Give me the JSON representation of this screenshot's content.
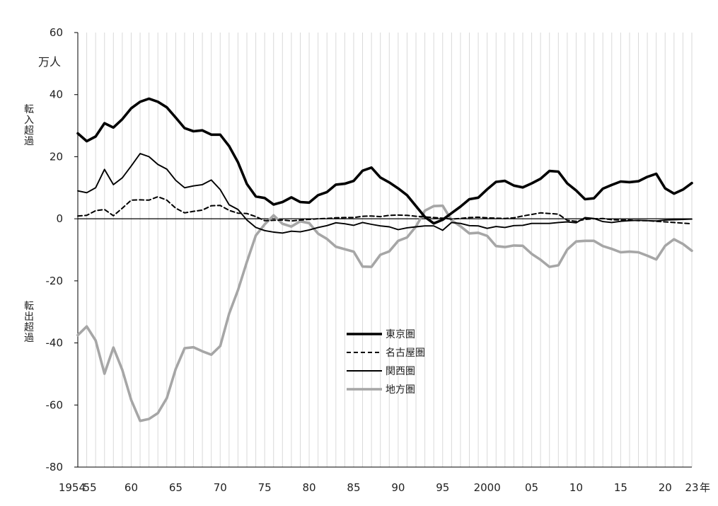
{
  "chart_data": {
    "type": "line",
    "unit_label": "万人",
    "annotation_in": "転入超過",
    "annotation_out": "転出超過",
    "x_suffix": "年",
    "ylim": [
      -80,
      60
    ],
    "yticks": [
      60,
      40,
      20,
      0,
      -20,
      -40,
      -60,
      -80
    ],
    "xlim": [
      1954,
      2023
    ],
    "xtick_labels": [
      {
        "x": 1954,
        "label": "1954"
      },
      {
        "x": 1955,
        "label": "55"
      },
      {
        "x": 1960,
        "label": "60"
      },
      {
        "x": 1965,
        "label": "65"
      },
      {
        "x": 1970,
        "label": "70"
      },
      {
        "x": 1975,
        "label": "75"
      },
      {
        "x": 1980,
        "label": "80"
      },
      {
        "x": 1985,
        "label": "85"
      },
      {
        "x": 1990,
        "label": "90"
      },
      {
        "x": 1995,
        "label": "95"
      },
      {
        "x": 2000,
        "label": "2000"
      },
      {
        "x": 2005,
        "label": "05"
      },
      {
        "x": 2010,
        "label": "10"
      },
      {
        "x": 2015,
        "label": "15"
      },
      {
        "x": 2020,
        "label": "20"
      },
      {
        "x": 2023,
        "label": "23"
      }
    ],
    "grid": "vertical",
    "legend_position": "center",
    "series": [
      {
        "name": "東京圏",
        "color": "#000000",
        "style": "thick",
        "x": [
          1954,
          1955,
          1956,
          1957,
          1958,
          1959,
          1960,
          1961,
          1962,
          1963,
          1964,
          1965,
          1966,
          1967,
          1968,
          1969,
          1970,
          1971,
          1972,
          1973,
          1974,
          1975,
          1976,
          1977,
          1978,
          1979,
          1980,
          1981,
          1982,
          1983,
          1984,
          1985,
          1986,
          1987,
          1988,
          1989,
          1990,
          1991,
          1992,
          1993,
          1994,
          1995,
          1996,
          1997,
          1998,
          1999,
          2000,
          2001,
          2002,
          2003,
          2004,
          2005,
          2006,
          2007,
          2008,
          2009,
          2010,
          2011,
          2012,
          2013,
          2014,
          2015,
          2016,
          2017,
          2018,
          2019,
          2020,
          2021,
          2022,
          2023
        ],
        "values": [
          27.5,
          25,
          26.5,
          30.8,
          29.4,
          32.1,
          35.6,
          37.7,
          38.7,
          37.7,
          35.9,
          32.6,
          29.2,
          28.2,
          28.5,
          27.1,
          27.1,
          23.4,
          18.2,
          11.2,
          7.2,
          6.7,
          4.6,
          5.4,
          6.9,
          5.4,
          5.2,
          7.6,
          8.6,
          11,
          11.3,
          12.2,
          15.5,
          16.5,
          13.3,
          11.7,
          9.8,
          7.6,
          4.1,
          0.6,
          -1.5,
          -0.3,
          1.8,
          3.9,
          6.3,
          6.8,
          9.5,
          11.9,
          12.2,
          10.7,
          10.1,
          11.4,
          12.9,
          15.4,
          15.2,
          11.4,
          9.1,
          6.3,
          6.6,
          9.7,
          10.9,
          12,
          11.8,
          12.1,
          13.5,
          14.5,
          9.8,
          8.1,
          9.4,
          11.5
        ]
      },
      {
        "name": "名古屋圏",
        "color": "#000000",
        "style": "dashed",
        "x": [
          1954,
          1955,
          1956,
          1957,
          1958,
          1959,
          1960,
          1961,
          1962,
          1963,
          1964,
          1965,
          1966,
          1967,
          1968,
          1969,
          1970,
          1971,
          1972,
          1973,
          1974,
          1975,
          1976,
          1977,
          1978,
          1979,
          1980,
          1981,
          1982,
          1983,
          1984,
          1985,
          1986,
          1987,
          1988,
          1989,
          1990,
          1991,
          1992,
          1993,
          1994,
          1995,
          1996,
          1997,
          1998,
          1999,
          2000,
          2001,
          2002,
          2003,
          2004,
          2005,
          2006,
          2007,
          2008,
          2009,
          2010,
          2011,
          2012,
          2013,
          2014,
          2015,
          2016,
          2017,
          2018,
          2019,
          2020,
          2021,
          2022,
          2023
        ],
        "values": [
          0.9,
          1.1,
          2.6,
          3,
          1,
          3.4,
          6,
          6.1,
          6,
          7.1,
          6,
          3.4,
          1.9,
          2.4,
          2.8,
          4.2,
          4.3,
          2.7,
          1.8,
          1.7,
          0.7,
          -0.6,
          -0.5,
          -0.4,
          -0.7,
          -0.4,
          -0.2,
          0,
          0.1,
          0.3,
          0.4,
          0.4,
          0.8,
          0.9,
          0.7,
          1.1,
          1.2,
          1.1,
          0.8,
          0.6,
          0.4,
          0.2,
          -0.1,
          0.1,
          0.4,
          0.5,
          0.3,
          0.2,
          0.1,
          0.3,
          0.9,
          1.4,
          1.9,
          1.7,
          1.5,
          -0.5,
          -0.8,
          -0.2,
          0,
          0.1,
          -0.3,
          -0.4,
          -0.4,
          -0.6,
          -0.6,
          -0.8,
          -1,
          -1.2,
          -1.4,
          -1.6
        ]
      },
      {
        "name": "関西圏",
        "color": "#000000",
        "style": "thin",
        "x": [
          1954,
          1955,
          1956,
          1957,
          1958,
          1959,
          1960,
          1961,
          1962,
          1963,
          1964,
          1965,
          1966,
          1967,
          1968,
          1969,
          1970,
          1971,
          1972,
          1973,
          1974,
          1975,
          1976,
          1977,
          1978,
          1979,
          1980,
          1981,
          1982,
          1983,
          1984,
          1985,
          1986,
          1987,
          1988,
          1989,
          1990,
          1991,
          1992,
          1993,
          1994,
          1995,
          1996,
          1997,
          1998,
          1999,
          2000,
          2001,
          2002,
          2003,
          2004,
          2005,
          2006,
          2007,
          2008,
          2009,
          2010,
          2011,
          2012,
          2013,
          2014,
          2015,
          2016,
          2017,
          2018,
          2019,
          2020,
          2021,
          2022,
          2023
        ],
        "values": [
          9,
          8.4,
          10,
          15.9,
          11,
          13.2,
          17,
          21,
          20,
          17.5,
          16,
          12.4,
          10,
          10.6,
          11,
          12.5,
          9.4,
          4.5,
          3,
          -0.4,
          -2.8,
          -3.8,
          -4.3,
          -4.6,
          -4,
          -4.2,
          -3.6,
          -2.8,
          -2.2,
          -1.3,
          -1.6,
          -2.1,
          -1.2,
          -1.8,
          -2.3,
          -2.6,
          -3.5,
          -2.9,
          -2.6,
          -2.3,
          -2.3,
          -3.7,
          -1.2,
          -1.5,
          -2.2,
          -2.3,
          -3.1,
          -2.5,
          -2.8,
          -2.2,
          -2.1,
          -1.5,
          -1.5,
          -1.5,
          -1.2,
          -1,
          -1.3,
          0.4,
          0.1,
          -0.9,
          -1.2,
          -0.8,
          -0.6,
          -0.5,
          -0.6,
          -0.7,
          -0.4,
          -0.3,
          -0.2,
          -0.1
        ]
      },
      {
        "name": "地方圏",
        "color": "#a6a6a6",
        "style": "thick",
        "x": [
          1954,
          1955,
          1956,
          1957,
          1958,
          1959,
          1960,
          1961,
          1962,
          1963,
          1964,
          1965,
          1966,
          1967,
          1968,
          1969,
          1970,
          1971,
          1972,
          1973,
          1974,
          1975,
          1976,
          1977,
          1978,
          1979,
          1980,
          1981,
          1982,
          1983,
          1984,
          1985,
          1986,
          1987,
          1988,
          1989,
          1990,
          1991,
          1992,
          1993,
          1994,
          1995,
          1996,
          1997,
          1998,
          1999,
          2000,
          2001,
          2002,
          2003,
          2004,
          2005,
          2006,
          2007,
          2008,
          2009,
          2010,
          2011,
          2012,
          2013,
          2014,
          2015,
          2016,
          2017,
          2018,
          2019,
          2020,
          2021,
          2022,
          2023
        ],
        "values": [
          -37.5,
          -34.7,
          -39.2,
          -49.9,
          -41.5,
          -48.7,
          -58.4,
          -65.1,
          -64.5,
          -62.6,
          -57.8,
          -48.4,
          -41.7,
          -41.4,
          -42.7,
          -43.8,
          -41,
          -30.6,
          -23,
          -13.9,
          -5.4,
          -1.8,
          1.1,
          -1.6,
          -2.5,
          -0.8,
          -1.4,
          -4.8,
          -6.5,
          -9,
          -9.8,
          -10.6,
          -15.4,
          -15.5,
          -11.6,
          -10.5,
          -7.1,
          -6,
          -2.5,
          2.6,
          4.1,
          4.2,
          -0.5,
          -2.4,
          -4.7,
          -4.5,
          -5.5,
          -8.8,
          -9.1,
          -8.6,
          -8.7,
          -11.3,
          -13.2,
          -15.5,
          -15,
          -9.9,
          -7.3,
          -7.1,
          -7.1,
          -8.8,
          -9.7,
          -10.8,
          -10.6,
          -10.8,
          -11.9,
          -13.1,
          -8.7,
          -6.6,
          -8.1,
          -10.3
        ]
      }
    ]
  }
}
